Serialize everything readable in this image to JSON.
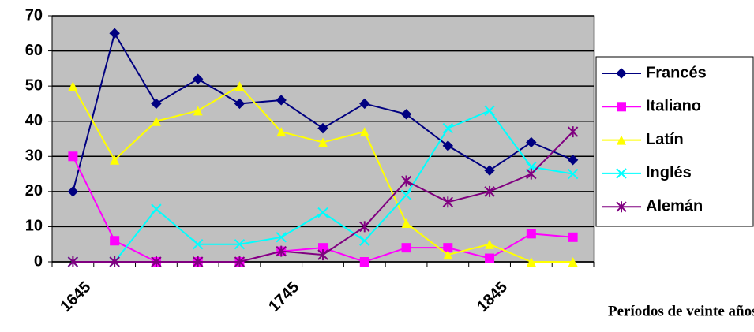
{
  "chart_data": {
    "type": "line",
    "x_label": "Períodos de veinte años",
    "categories": [
      "1645",
      null,
      null,
      null,
      null,
      "1745",
      null,
      null,
      null,
      null,
      "1845",
      null,
      null
    ],
    "series": [
      {
        "name": "Francés",
        "color": "#000080",
        "marker": "diamond",
        "values": [
          20,
          65,
          45,
          52,
          45,
          46,
          38,
          45,
          42,
          33,
          26,
          34,
          29
        ]
      },
      {
        "name": "Italiano",
        "color": "#ff00ff",
        "marker": "square",
        "values": [
          30,
          6,
          0,
          0,
          0,
          3,
          4,
          0,
          4,
          4,
          1,
          8,
          7
        ]
      },
      {
        "name": "Latín",
        "color": "#ffff00",
        "marker": "triangle",
        "values": [
          50,
          29,
          40,
          43,
          50,
          37,
          34,
          37,
          11,
          2,
          5,
          0,
          0
        ]
      },
      {
        "name": "Inglés",
        "color": "#00ffff",
        "marker": "x",
        "values": [
          0,
          0,
          15,
          5,
          5,
          7,
          14,
          6,
          19,
          38,
          43,
          27,
          25
        ]
      },
      {
        "name": "Alemán",
        "color": "#800080",
        "marker": "star",
        "values": [
          0,
          0,
          0,
          0,
          0,
          3,
          2,
          10,
          23,
          17,
          20,
          25,
          37
        ]
      }
    ],
    "ylim": [
      0,
      70
    ],
    "yticks": [
      0,
      10,
      20,
      30,
      40,
      50,
      60,
      70
    ],
    "grid": true,
    "legend": "right"
  }
}
